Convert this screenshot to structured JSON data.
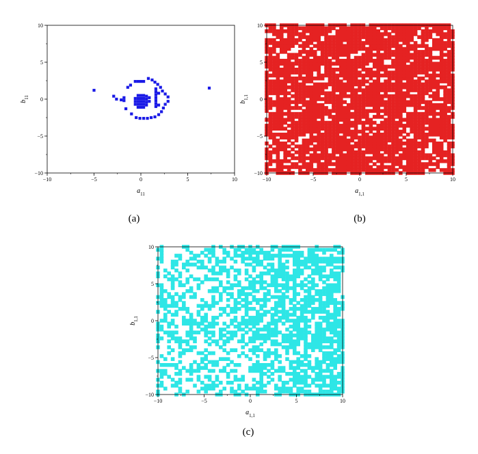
{
  "colors": {
    "panel_a_points": "#1a1ae6",
    "panel_b_points": "#e52222",
    "panel_c_points": "#2ee6e6",
    "axis": "#000000"
  },
  "chart_data": [
    {
      "panel": "a",
      "caption": "(a)",
      "type": "scatter",
      "xlabel": "a11",
      "ylabel": "b11",
      "xlim": [
        -10,
        10
      ],
      "ylim": [
        -10,
        10
      ],
      "xticks": [
        -10,
        -5,
        0,
        5,
        10
      ],
      "yticks": [
        -10,
        -5,
        0,
        5,
        10
      ],
      "grid": false,
      "marker": "square",
      "color": "#1a1ae6",
      "points": [
        [
          -5.0,
          1.2
        ],
        [
          7.3,
          1.5
        ],
        [
          -2.9,
          0.4
        ],
        [
          -2.6,
          0.0
        ],
        [
          -2.1,
          -0.1
        ],
        [
          -1.8,
          -0.2
        ],
        [
          -1.8,
          0.2
        ],
        [
          -1.6,
          -1.3
        ],
        [
          -1.4,
          1.6
        ],
        [
          -1.1,
          1.9
        ],
        [
          -1.0,
          -2.0
        ],
        [
          -0.6,
          2.4
        ],
        [
          -0.3,
          2.4
        ],
        [
          0.0,
          2.4
        ],
        [
          0.3,
          2.4
        ],
        [
          0.8,
          2.8
        ],
        [
          1.2,
          2.6
        ],
        [
          1.5,
          2.3
        ],
        [
          1.8,
          2.0
        ],
        [
          2.1,
          1.6
        ],
        [
          2.3,
          1.1
        ],
        [
          2.6,
          0.7
        ],
        [
          2.9,
          0.3
        ],
        [
          2.9,
          -0.3
        ],
        [
          2.6,
          -0.7
        ],
        [
          2.4,
          -1.2
        ],
        [
          2.2,
          -1.7
        ],
        [
          1.9,
          -2.1
        ],
        [
          1.5,
          -2.4
        ],
        [
          1.1,
          -2.5
        ],
        [
          0.7,
          -2.6
        ],
        [
          0.3,
          -2.6
        ],
        [
          -0.1,
          -2.6
        ],
        [
          -0.5,
          -2.5
        ],
        [
          -0.6,
          0.1
        ],
        [
          -0.6,
          -0.3
        ],
        [
          -0.6,
          -0.7
        ],
        [
          -0.3,
          0.5
        ],
        [
          -0.3,
          0.1
        ],
        [
          -0.3,
          -0.3
        ],
        [
          -0.3,
          -0.7
        ],
        [
          -0.3,
          -1.1
        ],
        [
          0.0,
          0.5
        ],
        [
          0.0,
          0.1
        ],
        [
          0.0,
          -0.3
        ],
        [
          0.0,
          -0.7
        ],
        [
          0.0,
          -1.1
        ],
        [
          0.3,
          0.5
        ],
        [
          0.3,
          0.1
        ],
        [
          0.3,
          -0.3
        ],
        [
          0.3,
          -0.7
        ],
        [
          0.3,
          -1.1
        ],
        [
          0.6,
          0.4
        ],
        [
          0.6,
          0.0
        ],
        [
          0.6,
          -0.4
        ],
        [
          0.6,
          -0.8
        ],
        [
          0.9,
          0.2
        ],
        [
          0.9,
          -0.3
        ],
        [
          1.6,
          1.4
        ],
        [
          1.6,
          1.0
        ],
        [
          1.6,
          0.6
        ],
        [
          1.6,
          0.2
        ],
        [
          1.6,
          -0.2
        ],
        [
          1.6,
          -0.6
        ],
        [
          1.6,
          -1.0
        ],
        [
          1.9,
          0.8
        ],
        [
          1.9,
          -0.8
        ]
      ]
    },
    {
      "panel": "b",
      "caption": "(b)",
      "type": "scatter",
      "xlabel": "a1,1",
      "ylabel": "b1,1",
      "xlim": [
        -10,
        10
      ],
      "ylim": [
        -10,
        10
      ],
      "xticks": [
        -10,
        -5,
        0,
        5,
        10
      ],
      "yticks": [
        -10,
        -5,
        0,
        5,
        10
      ],
      "grid": false,
      "marker": "square",
      "color": "#e52222",
      "grid_step": 0.4,
      "coverage": 0.86
    },
    {
      "panel": "c",
      "caption": "(c)",
      "type": "scatter",
      "xlabel": "a1,1",
      "ylabel": "b1,1",
      "xlim": [
        -10,
        10
      ],
      "ylim": [
        -10,
        10
      ],
      "xticks": [
        -10,
        -5,
        0,
        5,
        10
      ],
      "yticks": [
        -10,
        -5,
        0,
        5,
        10
      ],
      "grid": false,
      "marker": "square",
      "color": "#2ee6e6",
      "grid_step": 0.4,
      "coverage": 0.5
    }
  ]
}
